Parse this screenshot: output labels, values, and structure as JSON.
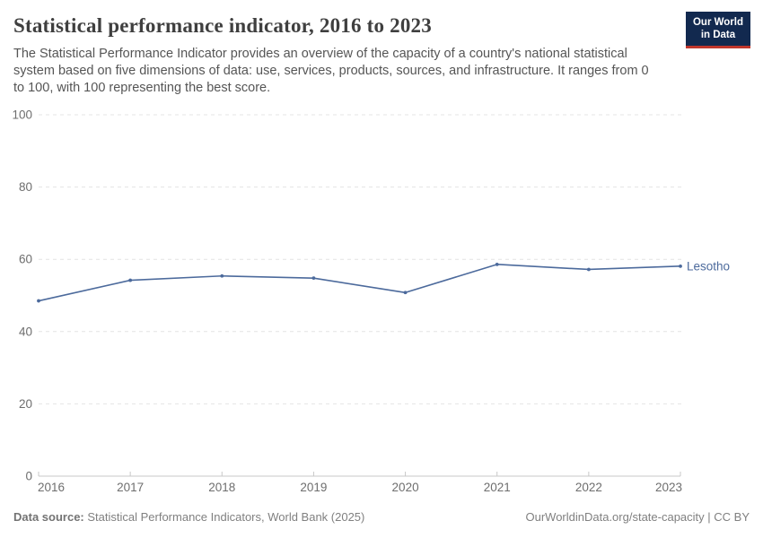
{
  "header": {
    "title": "Statistical performance indicator, 2016 to 2023",
    "subtitle_lines": [
      "The Statistical Performance Indicator provides an overview of the capacity of a country's national statistical",
      "system based on five dimensions of data: use, services, products, sources, and infrastructure. It ranges from 0",
      "to 100, with 100 representing the best score."
    ]
  },
  "logo": {
    "line1": "Our World",
    "line2": "in Data",
    "bg_color": "#12294f",
    "accent_color": "#c0362c"
  },
  "chart_data": {
    "type": "line",
    "title": "Statistical performance indicator, 2016 to 2023",
    "x": [
      2016,
      2017,
      2018,
      2019,
      2020,
      2021,
      2022,
      2023
    ],
    "series": [
      {
        "name": "Lesotho",
        "color": "#4c6a9c",
        "values": [
          48.5,
          54.2,
          55.4,
          54.8,
          50.8,
          58.6,
          57.2,
          58.1
        ]
      }
    ],
    "xlabel": "",
    "ylabel": "",
    "ylim": [
      0,
      100
    ],
    "yticks": [
      0,
      20,
      40,
      60,
      80,
      100
    ],
    "grid": "horizontal-dashed",
    "legend_position": "end-of-line-label"
  },
  "footer": {
    "datasource_label": "Data source:",
    "datasource_text": " Statistical Performance Indicators, World Bank (2025)",
    "attribution": "OurWorldinData.org/state-capacity | CC BY"
  }
}
